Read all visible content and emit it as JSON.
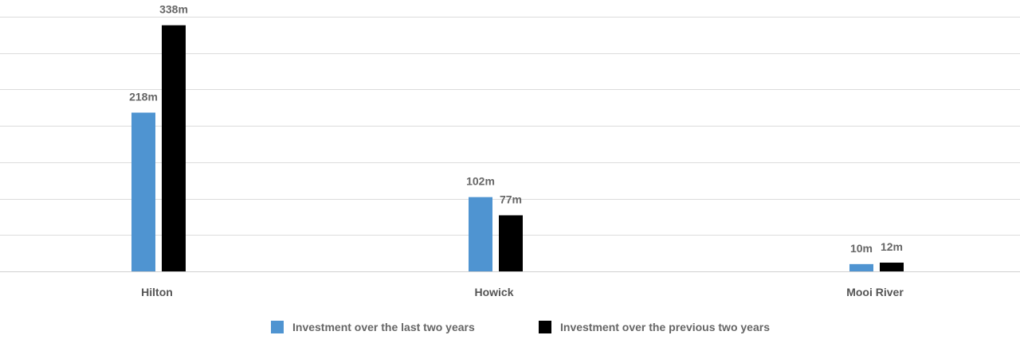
{
  "chart_data": {
    "type": "bar",
    "categories": [
      "Hilton",
      "Howick",
      "Mooi River"
    ],
    "series": [
      {
        "name": "Investment over the last two years",
        "values": [
          218,
          102,
          10
        ],
        "labels": [
          "218m",
          "102m",
          "10m"
        ],
        "color": "#4f94d1"
      },
      {
        "name": "Investment over the previous two years",
        "values": [
          338,
          77,
          12
        ],
        "labels": [
          "338m",
          "77m",
          "12m"
        ],
        "color": "#000000"
      }
    ],
    "ylim": [
      0,
      350
    ],
    "grid": true,
    "legend": "bottom-center",
    "title": "",
    "xlabel": "",
    "ylabel": ""
  }
}
